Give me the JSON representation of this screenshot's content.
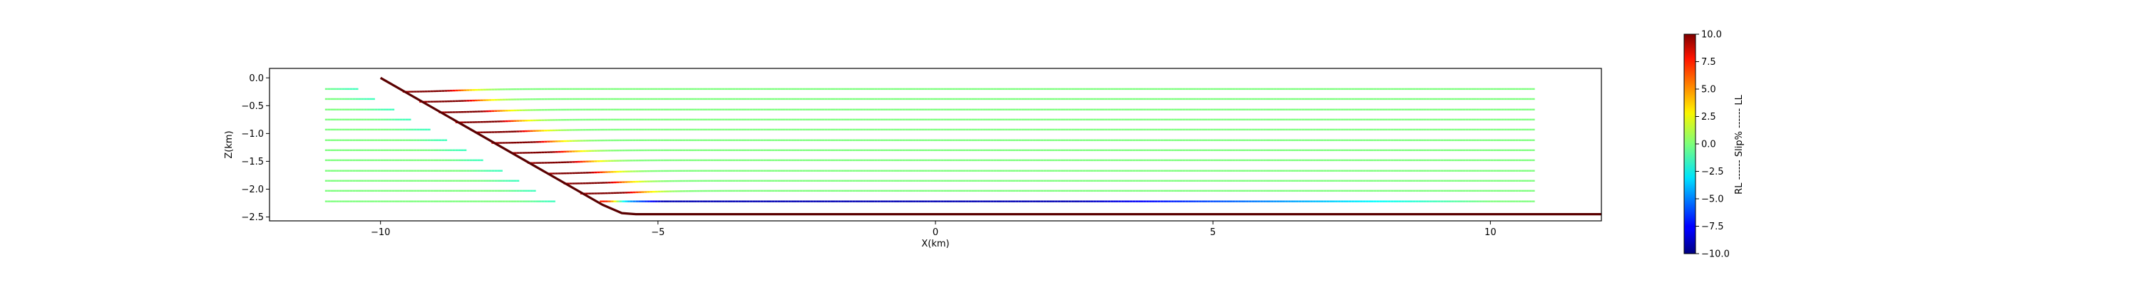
{
  "chart_data": {
    "type": "line",
    "title": "",
    "xlabel": "X(km)",
    "ylabel": "Z(km)",
    "xlim": [
      -12.0,
      12.0
    ],
    "ylim": [
      -2.57,
      0.17
    ],
    "xticks": [
      -10,
      -5,
      0,
      5,
      10
    ],
    "xtick_labels": [
      "−10",
      "−5",
      "0",
      "5",
      "10"
    ],
    "yticks": [
      0.0,
      -0.5,
      -1.0,
      -1.5,
      -2.0,
      -2.5
    ],
    "ytick_labels": [
      "0.0",
      "−0.5",
      "−1.0",
      "−1.5",
      "−2.0",
      "−2.5"
    ],
    "grid": false,
    "fault": {
      "name": "fault",
      "color": "#5a0000",
      "points": [
        [
          -10.0,
          0.0
        ],
        [
          -6.0,
          -2.28
        ],
        [
          -5.65,
          -2.43
        ],
        [
          -5.4,
          -2.45
        ],
        [
          12.0,
          -2.45
        ]
      ]
    },
    "layers": {
      "depths": [
        -0.2,
        -0.38,
        -0.57,
        -0.75,
        -0.93,
        -1.12,
        -1.3,
        -1.48,
        -1.67,
        -1.85,
        -2.03,
        -2.22
      ],
      "x_start": -11.0,
      "x_end": 10.8,
      "fault_offset_km": 0.75,
      "drag_halfwidth_km": 0.75,
      "bottom_layer_slip": -9
    },
    "colorbar": {
      "label": "RL ------ Slip% ------ LL",
      "min": -10.0,
      "max": 10.0,
      "ticks": [
        10.0,
        7.5,
        5.0,
        2.5,
        0.0,
        -2.5,
        -5.0,
        -7.5,
        -10.0
      ],
      "tick_labels": [
        "10.0",
        "7.5",
        "5.0",
        "2.5",
        "0.0",
        "−2.5",
        "−5.0",
        "−7.5",
        "−10.0"
      ],
      "colormap": "jet"
    }
  }
}
